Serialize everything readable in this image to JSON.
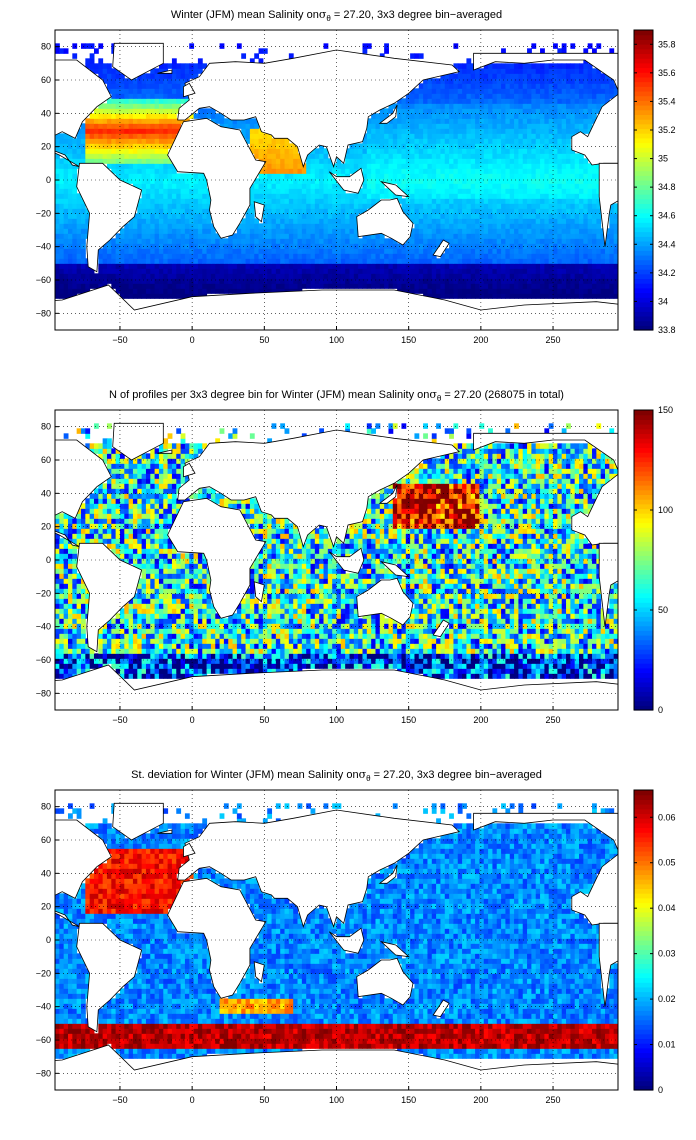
{
  "chart_data": [
    {
      "type": "heatmap",
      "title_prefix": "Winter (JFM) mean Salinity on",
      "title_sigma": "σ",
      "title_sub": "θ",
      "title_suffix": " = 27.20, 3x3 degree bin−averaged",
      "xticks": [
        "−50",
        "0",
        "50",
        "100",
        "150",
        "200",
        "250"
      ],
      "xtick_values": [
        -50,
        0,
        50,
        100,
        150,
        200,
        250
      ],
      "yticks": [
        "80",
        "60",
        "40",
        "20",
        "0",
        "−20",
        "−40",
        "−60",
        "−80"
      ],
      "ytick_values": [
        80,
        60,
        40,
        20,
        0,
        -20,
        -40,
        -60,
        -80
      ],
      "xlim": [
        -95,
        295
      ],
      "ylim": [
        -90,
        90
      ],
      "grid": true,
      "colormap": "jet",
      "colorbar": {
        "ticks": [
          "35.8",
          "35.6",
          "35.4",
          "35.2",
          "35",
          "34.8",
          "34.6",
          "34.4",
          "34.2",
          "34",
          "33.8"
        ],
        "tick_values": [
          35.8,
          35.6,
          35.4,
          35.2,
          35.0,
          34.8,
          34.6,
          34.4,
          34.2,
          34.0,
          33.8
        ],
        "range": [
          33.8,
          35.9
        ]
      },
      "field": "salinity",
      "seed": 11
    },
    {
      "type": "heatmap",
      "title_prefix": "N of profiles per 3x3 degree bin for Winter (JFM) mean Salinity on",
      "title_sigma": "σ",
      "title_sub": "θ",
      "title_suffix": " = 27.20 (268075 in total)",
      "xticks": [
        "−50",
        "0",
        "50",
        "100",
        "150",
        "200",
        "250"
      ],
      "xtick_values": [
        -50,
        0,
        50,
        100,
        150,
        200,
        250
      ],
      "yticks": [
        "80",
        "60",
        "40",
        "20",
        "0",
        "−20",
        "−40",
        "−60",
        "−80"
      ],
      "ytick_values": [
        80,
        60,
        40,
        20,
        0,
        -20,
        -40,
        -60,
        -80
      ],
      "xlim": [
        -95,
        295
      ],
      "ylim": [
        -90,
        90
      ],
      "grid": true,
      "colormap": "jet",
      "colorbar": {
        "ticks": [
          "150",
          "100",
          "50",
          "0"
        ],
        "tick_values": [
          150,
          100,
          50,
          0
        ],
        "range": [
          0,
          150
        ]
      },
      "field": "count",
      "seed": 23
    },
    {
      "type": "heatmap",
      "title_prefix": "St. deviation for Winter (JFM) mean Salinity on",
      "title_sigma": "σ",
      "title_sub": "θ",
      "title_suffix": " = 27.20, 3x3 degree bin−averaged",
      "xticks": [
        "−50",
        "0",
        "50",
        "100",
        "150",
        "200",
        "250"
      ],
      "xtick_values": [
        -50,
        0,
        50,
        100,
        150,
        200,
        250
      ],
      "yticks": [
        "80",
        "60",
        "40",
        "20",
        "0",
        "−20",
        "−40",
        "−60",
        "−80"
      ],
      "ytick_values": [
        80,
        60,
        40,
        20,
        0,
        -20,
        -40,
        -60,
        -80
      ],
      "xlim": [
        -95,
        295
      ],
      "ylim": [
        -90,
        90
      ],
      "grid": true,
      "colormap": "jet",
      "colorbar": {
        "ticks": [
          "0.06",
          "0.05",
          "0.04",
          "0.03",
          "0.02",
          "0.01",
          "0"
        ],
        "tick_values": [
          0.06,
          0.05,
          0.04,
          0.03,
          0.02,
          0.01,
          0
        ],
        "range": [
          0,
          0.066
        ]
      },
      "field": "std",
      "seed": 37
    }
  ]
}
